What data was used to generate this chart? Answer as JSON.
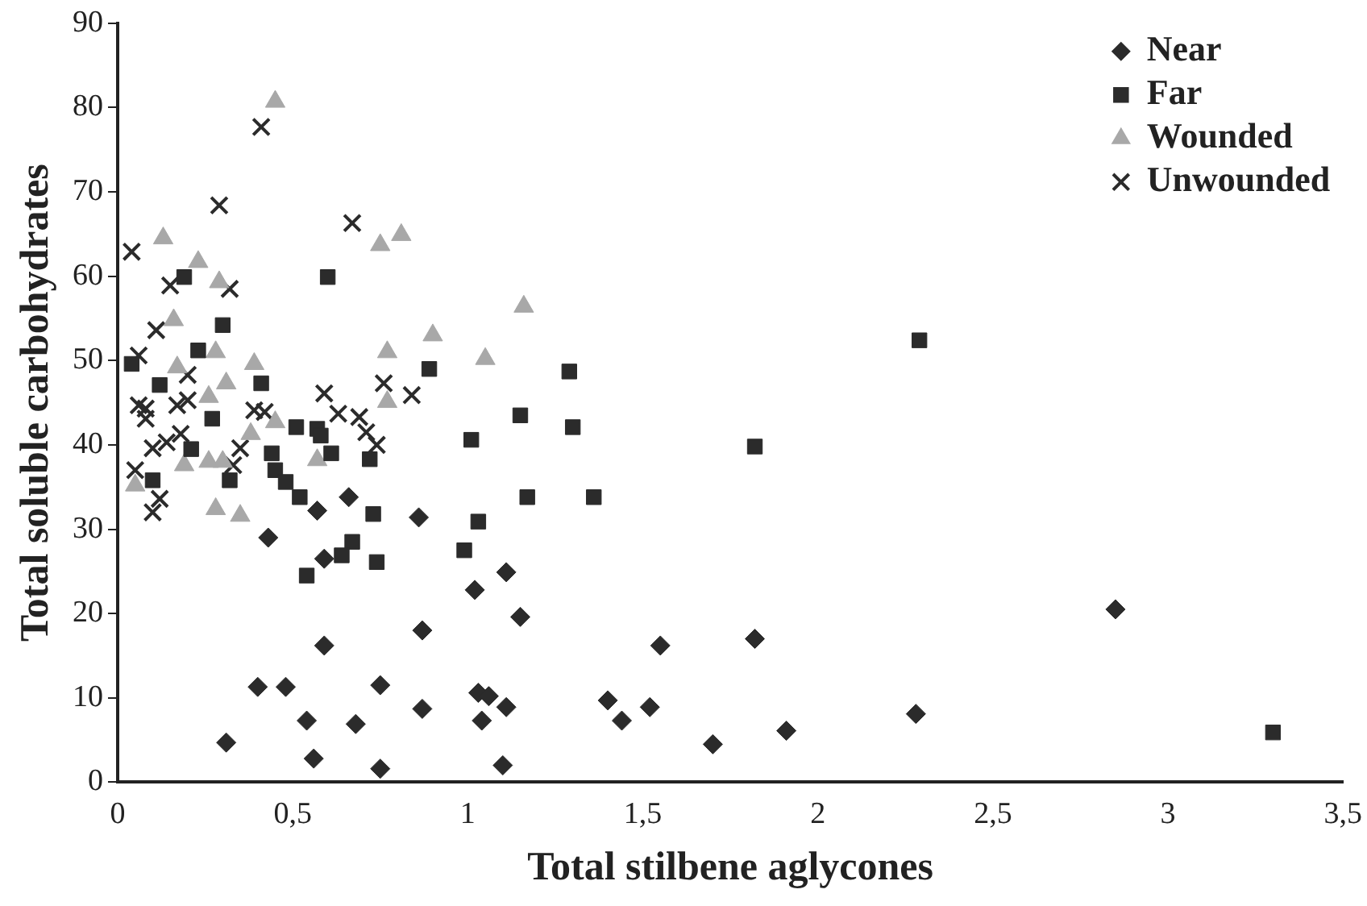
{
  "chart_data": {
    "type": "scatter",
    "xlabel": "Total stilbene aglycones",
    "ylabel": "Total soluble carbohydrates",
    "xlim": [
      0,
      3.5
    ],
    "xticks": [
      0,
      {
        "value": 0.5,
        "label": "0,5"
      },
      1,
      {
        "value": 1.5,
        "label": "1,5"
      },
      2,
      {
        "value": 2.5,
        "label": "2,5"
      },
      3,
      {
        "value": 3.5,
        "label": "3,5"
      }
    ],
    "ylim": [
      0,
      90
    ],
    "yticks": [
      0,
      10,
      20,
      30,
      40,
      50,
      60,
      70,
      80,
      90
    ],
    "grid": false,
    "legend": "top right",
    "series": [
      {
        "name": "Near",
        "color": "#2b2b2b",
        "marker": "diamond",
        "x": [
          0.31,
          0.4,
          0.48,
          0.54,
          0.56,
          0.59,
          0.59,
          0.57,
          0.43,
          0.66,
          0.68,
          0.75,
          0.75,
          0.86,
          0.87,
          0.87,
          1.02,
          1.03,
          1.04,
          1.06,
          1.1,
          1.11,
          1.11,
          1.15,
          1.4,
          1.44,
          1.52,
          1.55,
          1.7,
          1.82,
          1.91,
          2.28,
          2.85
        ],
        "values": [
          4.7,
          11.3,
          11.3,
          7.3,
          2.8,
          16.2,
          26.5,
          32.2,
          29,
          33.8,
          6.9,
          11.5,
          1.6,
          31.4,
          18,
          8.7,
          22.8,
          10.6,
          7.3,
          10.2,
          2,
          8.9,
          24.9,
          19.6,
          9.7,
          7.3,
          8.9,
          16.2,
          4.5,
          17,
          6.1,
          8.1,
          20.5
        ]
      },
      {
        "name": "Far",
        "color": "#2b2b2b",
        "marker": "square",
        "x": [
          0.04,
          0.12,
          0.23,
          0.3,
          0.19,
          0.6,
          0.41,
          0.89,
          0.27,
          0.51,
          0.57,
          1.15,
          1.3,
          1.01,
          0.58,
          0.61,
          0.44,
          0.72,
          0.45,
          0.48,
          0.52,
          1.17,
          0.73,
          1.03,
          0.99,
          0.67,
          0.64,
          0.74,
          0.54,
          1.36,
          1.29,
          2.29,
          1.82,
          3.3,
          0.1,
          0.21,
          0.32
        ],
        "values": [
          49.6,
          47.1,
          51.2,
          54.2,
          59.9,
          59.9,
          47.3,
          49,
          43.1,
          42.1,
          41.9,
          43.5,
          42.1,
          40.6,
          41.1,
          39,
          39,
          38.3,
          37,
          35.6,
          33.8,
          33.8,
          31.8,
          30.9,
          27.5,
          28.5,
          26.9,
          26.1,
          24.5,
          33.8,
          48.7,
          52.4,
          39.8,
          5.9,
          35.8,
          39.5,
          35.8
        ]
      },
      {
        "name": "Wounded",
        "color": "#a8a8a8",
        "marker": "triangle",
        "x": [
          0.45,
          0.13,
          0.23,
          0.29,
          0.75,
          0.81,
          0.9,
          0.77,
          0.16,
          0.28,
          0.39,
          0.31,
          0.17,
          0.77,
          0.26,
          0.45,
          1.16,
          1.05,
          0.05,
          0.28,
          0.35,
          0.19,
          0.26,
          0.3,
          0.38,
          0.57
        ],
        "values": [
          80.7,
          64.5,
          61.7,
          59.3,
          63.7,
          64.9,
          53,
          51,
          54.8,
          51,
          49.6,
          47.3,
          49.2,
          45.1,
          45.7,
          42.7,
          56.4,
          50.2,
          35.2,
          32.4,
          31.6,
          37.6,
          38,
          38,
          41.3,
          38.2
        ]
      },
      {
        "name": "Unwounded",
        "color": "#2b2b2b",
        "marker": "cross",
        "x": [
          0.41,
          0.29,
          0.04,
          0.67,
          0.15,
          0.32,
          0.11,
          0.59,
          0.76,
          0.84,
          0.06,
          0.2,
          0.63,
          0.69,
          0.39,
          0.42,
          0.06,
          0.17,
          0.08,
          0.08,
          0.1,
          0.14,
          0.2,
          0.18,
          0.35,
          0.12,
          0.1,
          0.33,
          0.05,
          0.71,
          0.74
        ],
        "values": [
          77.7,
          68.4,
          62.9,
          66.3,
          58.9,
          58.5,
          53.6,
          46.1,
          47.3,
          45.9,
          50.6,
          48.3,
          43.7,
          43.3,
          44.1,
          43.9,
          44.7,
          44.7,
          43.1,
          44.3,
          39.6,
          40.3,
          45.3,
          41.3,
          39.6,
          33.6,
          32,
          37.6,
          37,
          41.5,
          40
        ]
      }
    ]
  }
}
